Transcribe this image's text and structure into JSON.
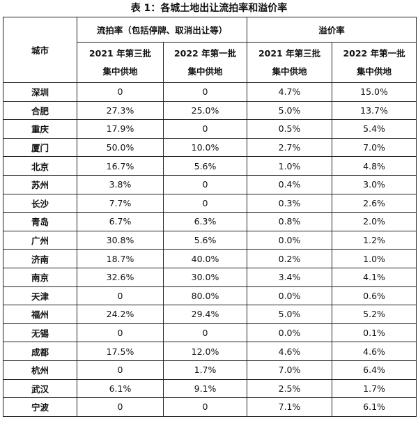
{
  "title": "表 1：各城土地出让流拍率和溢价率",
  "header": {
    "city": "城市",
    "group1": "流拍率（包括停牌、取消出让等）",
    "group2": "溢价率",
    "columns": [
      [
        "2021 年第三批",
        "集中供地"
      ],
      [
        "2022 年第一批",
        "集中供地"
      ],
      [
        "2021 年第三批",
        "集中供地"
      ],
      [
        "2022 年第一批",
        "集中供地"
      ]
    ]
  },
  "table": {
    "rows": [
      [
        "深圳",
        "0",
        "0",
        "4.7%",
        "15.0%"
      ],
      [
        "合肥",
        "27.3%",
        "25.0%",
        "5.0%",
        "13.7%"
      ],
      [
        "重庆",
        "17.9%",
        "0",
        "0.5%",
        "5.4%"
      ],
      [
        "厦门",
        "50.0%",
        "10.0%",
        "2.7%",
        "7.0%"
      ],
      [
        "北京",
        "16.7%",
        "5.6%",
        "1.0%",
        "4.8%"
      ],
      [
        "苏州",
        "3.8%",
        "0",
        "0.4%",
        "3.0%"
      ],
      [
        "长沙",
        "7.7%",
        "0",
        "0.3%",
        "2.6%"
      ],
      [
        "青岛",
        "6.7%",
        "6.3%",
        "0.8%",
        "2.0%"
      ],
      [
        "广州",
        "30.8%",
        "5.6%",
        "0.0%",
        "1.2%"
      ],
      [
        "济南",
        "18.7%",
        "40.0%",
        "0.2%",
        "1.0%"
      ],
      [
        "南京",
        "32.6%",
        "30.0%",
        "3.4%",
        "4.1%"
      ],
      [
        "天津",
        "0",
        "80.0%",
        "0.0%",
        "0.6%"
      ],
      [
        "福州",
        "24.2%",
        "29.4%",
        "5.0%",
        "5.2%"
      ],
      [
        "无锡",
        "0",
        "0",
        "0.0%",
        "0.1%"
      ],
      [
        "成都",
        "17.5%",
        "12.0%",
        "4.6%",
        "4.6%"
      ],
      [
        "杭州",
        "0",
        "1.7%",
        "7.0%",
        "6.4%"
      ],
      [
        "武汉",
        "6.1%",
        "9.1%",
        "2.5%",
        "1.7%"
      ],
      [
        "宁波",
        "0",
        "0",
        "7.1%",
        "6.1%"
      ]
    ]
  }
}
